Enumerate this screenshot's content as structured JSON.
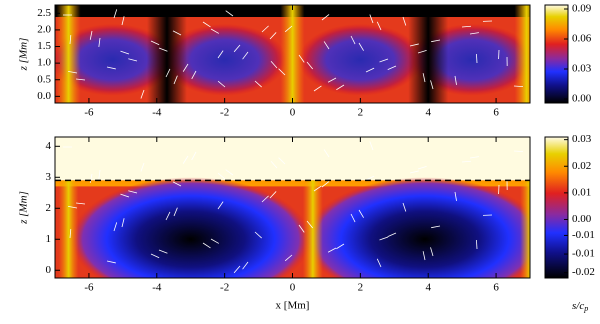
{
  "chart_data": [
    {
      "type": "heatmap",
      "ylabel": "z [Mm]",
      "xlim": [
        -7,
        7
      ],
      "xticks": [
        -6,
        -4,
        -2,
        0,
        2,
        4,
        6
      ],
      "ylim": [
        -0.2,
        2.75
      ],
      "yticks": [
        {
          "value": 0,
          "label": "0.0"
        },
        {
          "value": 0.5,
          "label": "0.5"
        },
        {
          "value": 1,
          "label": "1.0"
        },
        {
          "value": 1.5,
          "label": "1.5"
        },
        {
          "value": 2,
          "label": "2.0"
        },
        {
          "value": 2.5,
          "label": "2.5"
        }
      ],
      "clim": [
        -0.004,
        0.094
      ],
      "cticks": [
        {
          "value": 0.09,
          "label": "0.09"
        },
        {
          "value": 0.06,
          "label": "0.06"
        },
        {
          "value": 0.03,
          "label": "0.03"
        },
        {
          "value": 0,
          "label": "0.00"
        }
      ]
    },
    {
      "type": "heatmap",
      "xlabel": "x [Mm]",
      "ylabel": "z [Mm]",
      "xlim": [
        -7,
        7
      ],
      "xticks": [
        -6,
        -4,
        -2,
        0,
        2,
        4,
        6
      ],
      "ylim": [
        -0.25,
        4.3
      ],
      "yticks": [
        0,
        1,
        2,
        3,
        4
      ],
      "dashed_line_z": 2.9,
      "clim": [
        -0.022,
        0.031
      ],
      "cticks": [
        {
          "value": 0.03,
          "label": "0.03"
        },
        {
          "value": 0.02,
          "label": "0.02"
        },
        {
          "value": 0.01,
          "label": "0.01"
        },
        {
          "value": 0,
          "label": "0.00"
        },
        {
          "value": -0.006,
          "label": "-0.01"
        },
        {
          "value": -0.013,
          "label": "-0.01"
        },
        {
          "value": -0.02,
          "label": "-0.02"
        }
      ],
      "colorbar_label": "s/c",
      "colorbar_label_sub": "p"
    }
  ]
}
